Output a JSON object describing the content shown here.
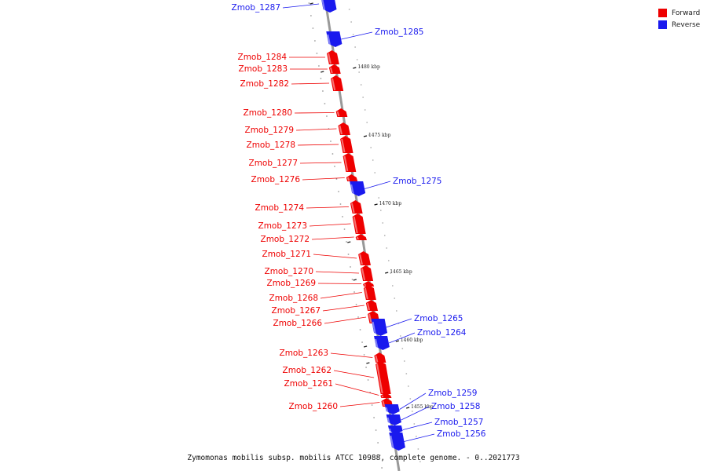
{
  "colors": {
    "forward": "#ee0000",
    "reverse": "#1a1aee",
    "axis": "#999999"
  },
  "legend": [
    {
      "label": "Forward",
      "color": "#ee0000"
    },
    {
      "label": "Reverse",
      "color": "#1a1aee"
    }
  ],
  "caption": "Zymomonas mobilis subsp. mobilis ATCC 10988, complete genome. - 0..2021773",
  "kbp_markers": [
    "1480 kbp",
    "1475 kbp",
    "1470 kbp",
    "1465 kbp",
    "1460 kbp",
    "1455 kbp"
  ],
  "genes": [
    {
      "name": "Zmob_1287",
      "strand": "reverse"
    },
    {
      "name": "Zmob_1285",
      "strand": "reverse"
    },
    {
      "name": "Zmob_1284",
      "strand": "forward"
    },
    {
      "name": "Zmob_1283",
      "strand": "forward"
    },
    {
      "name": "Zmob_1282",
      "strand": "forward"
    },
    {
      "name": "Zmob_1280",
      "strand": "forward"
    },
    {
      "name": "Zmob_1279",
      "strand": "forward"
    },
    {
      "name": "Zmob_1278",
      "strand": "forward"
    },
    {
      "name": "Zmob_1277",
      "strand": "forward"
    },
    {
      "name": "Zmob_1276",
      "strand": "forward"
    },
    {
      "name": "Zmob_1275",
      "strand": "reverse"
    },
    {
      "name": "Zmob_1274",
      "strand": "forward"
    },
    {
      "name": "Zmob_1273",
      "strand": "forward"
    },
    {
      "name": "Zmob_1272",
      "strand": "forward"
    },
    {
      "name": "Zmob_1271",
      "strand": "forward"
    },
    {
      "name": "Zmob_1270",
      "strand": "forward"
    },
    {
      "name": "Zmob_1269",
      "strand": "forward"
    },
    {
      "name": "Zmob_1268",
      "strand": "forward"
    },
    {
      "name": "Zmob_1267",
      "strand": "forward"
    },
    {
      "name": "Zmob_1266",
      "strand": "forward"
    },
    {
      "name": "Zmob_1265",
      "strand": "reverse"
    },
    {
      "name": "Zmob_1264",
      "strand": "reverse"
    },
    {
      "name": "Zmob_1263",
      "strand": "forward"
    },
    {
      "name": "Zmob_1262",
      "strand": "forward"
    },
    {
      "name": "Zmob_1261",
      "strand": "forward"
    },
    {
      "name": "Zmob_1260",
      "strand": "forward"
    },
    {
      "name": "Zmob_1259",
      "strand": "reverse"
    },
    {
      "name": "Zmob_1258",
      "strand": "reverse"
    },
    {
      "name": "Zmob_1257",
      "strand": "reverse"
    },
    {
      "name": "Zmob_1256",
      "strand": "reverse"
    }
  ]
}
